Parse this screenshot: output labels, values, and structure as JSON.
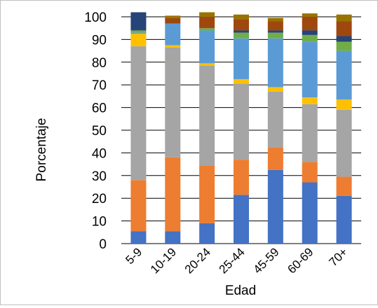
{
  "chart_data": {
    "type": "bar",
    "stacked": true,
    "categories": [
      "5-9",
      "10-19",
      "20-24",
      "25-44",
      "45-59",
      "60-69",
      "70+"
    ],
    "xlabel": "Edad",
    "ylabel": "Porcentaje",
    "ylim": [
      0,
      100
    ],
    "yticks": [
      0,
      10,
      20,
      30,
      40,
      50,
      60,
      70,
      80,
      90,
      100
    ],
    "grid": true,
    "legend": "none",
    "series": [
      {
        "color": "#4472c4",
        "values": [
          5.5,
          5.5,
          9,
          21.5,
          32.5,
          27,
          21
        ]
      },
      {
        "color": "#ed7d31",
        "values": [
          22.5,
          32.5,
          25.5,
          15.5,
          10,
          9,
          8.5
        ]
      },
      {
        "color": "#a5a5a5",
        "values": [
          59,
          48.5,
          44,
          33.5,
          24.5,
          25.5,
          29.5
        ]
      },
      {
        "color": "#ffc000",
        "values": [
          5.5,
          1,
          1,
          2,
          2,
          3,
          4.5
        ]
      },
      {
        "color": "#5b9bd5",
        "values": [
          0.5,
          9.5,
          14.5,
          18,
          21.5,
          24.5,
          21.5
        ]
      },
      {
        "color": "#70ad47",
        "values": [
          1,
          0,
          1,
          2.5,
          2.5,
          3,
          4
        ]
      },
      {
        "color": "#264478",
        "values": [
          8,
          0,
          0,
          1,
          1,
          2,
          2.5
        ]
      },
      {
        "color": "#9e480e",
        "values": [
          0,
          2.5,
          5,
          5,
          4,
          6,
          6.5
        ]
      },
      {
        "color": "#997300",
        "values": [
          0,
          1,
          2,
          2,
          1.5,
          1.5,
          3
        ]
      }
    ]
  }
}
